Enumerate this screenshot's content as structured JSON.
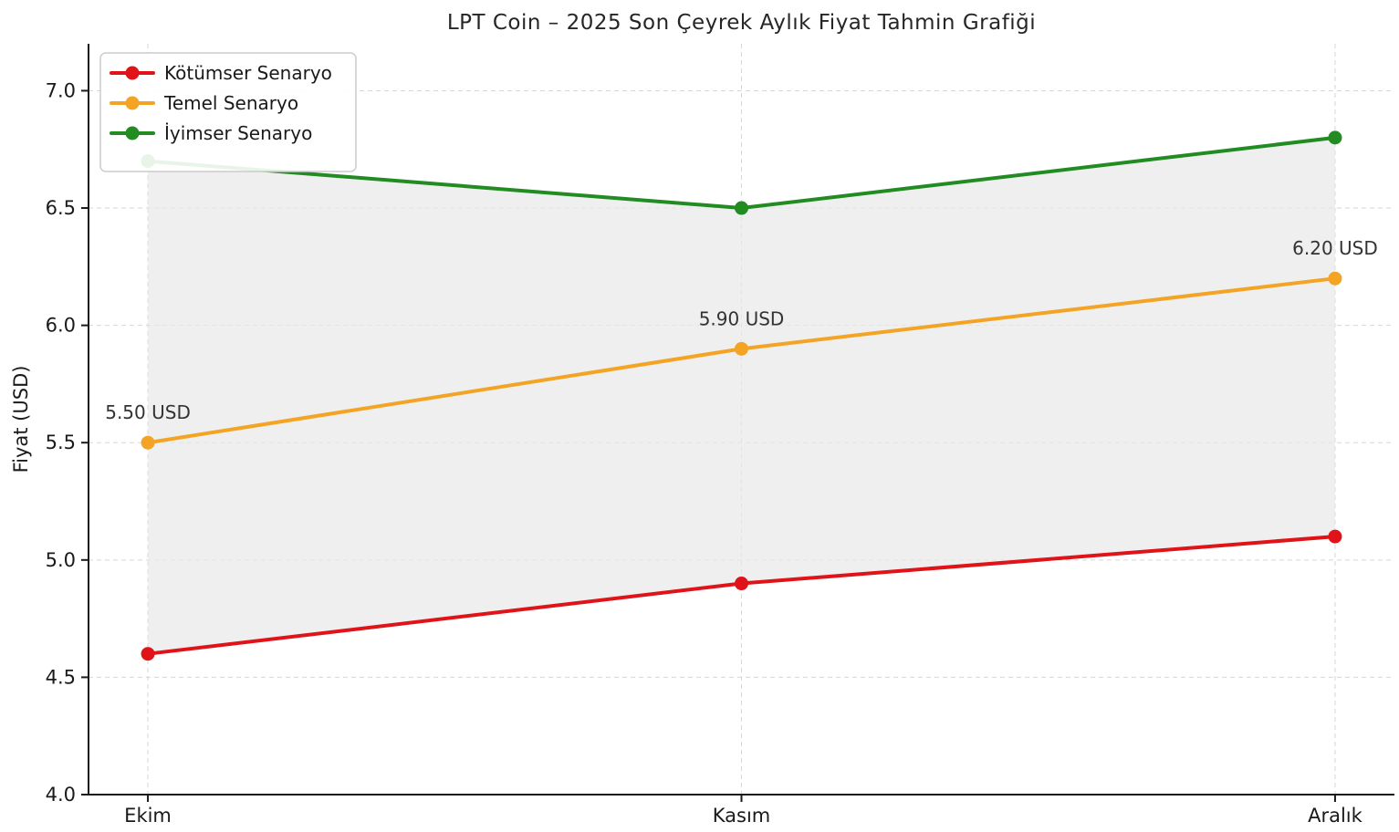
{
  "figure": {
    "title": "LPT Coin – 2025 Son Çeyrek Aylık Fiyat Tahmin Grafiği"
  },
  "chart_data": {
    "type": "line",
    "title": "LPT Coin – 2025 Son Çeyrek Aylık Fiyat Tahmin Grafiği",
    "xlabel": "",
    "ylabel": "Fiyat (USD)",
    "categories": [
      "Ekim",
      "Kasım",
      "Aralık"
    ],
    "series": [
      {
        "name": "Kötümser Senaryo",
        "color": "#e01418",
        "values": [
          4.6,
          4.9,
          5.1
        ]
      },
      {
        "name": "Temel Senaryo",
        "color": "#f4a425",
        "values": [
          5.5,
          5.9,
          6.2
        ]
      },
      {
        "name": "İyimser Senaryo",
        "color": "#228b22",
        "values": [
          6.7,
          6.5,
          6.8
        ]
      }
    ],
    "annotations": [
      {
        "text": "5.50 USD",
        "category_index": 0,
        "value": 5.5
      },
      {
        "text": "5.90 USD",
        "category_index": 1,
        "value": 5.9
      },
      {
        "text": "6.20 USD",
        "category_index": 2,
        "value": 6.2
      }
    ],
    "band": {
      "lower_series": "Kötümser Senaryo",
      "upper_series": "İyimser Senaryo",
      "color": "#e8e8e8",
      "opacity": 0.7
    },
    "ylim": [
      4.0,
      7.2
    ],
    "yticks": [
      "4.0",
      "4.5",
      "5.0",
      "5.5",
      "6.0",
      "6.5",
      "7.0"
    ],
    "grid": true,
    "legend_position": "upper-left",
    "colors": {
      "spine": "#1a1a1a",
      "tick_label": "#1a1a1a",
      "grid_line": "#d6d6d6",
      "annotation_text": "#333333",
      "legend_border": "#cccccc",
      "legend_background": "#ffffff"
    }
  }
}
